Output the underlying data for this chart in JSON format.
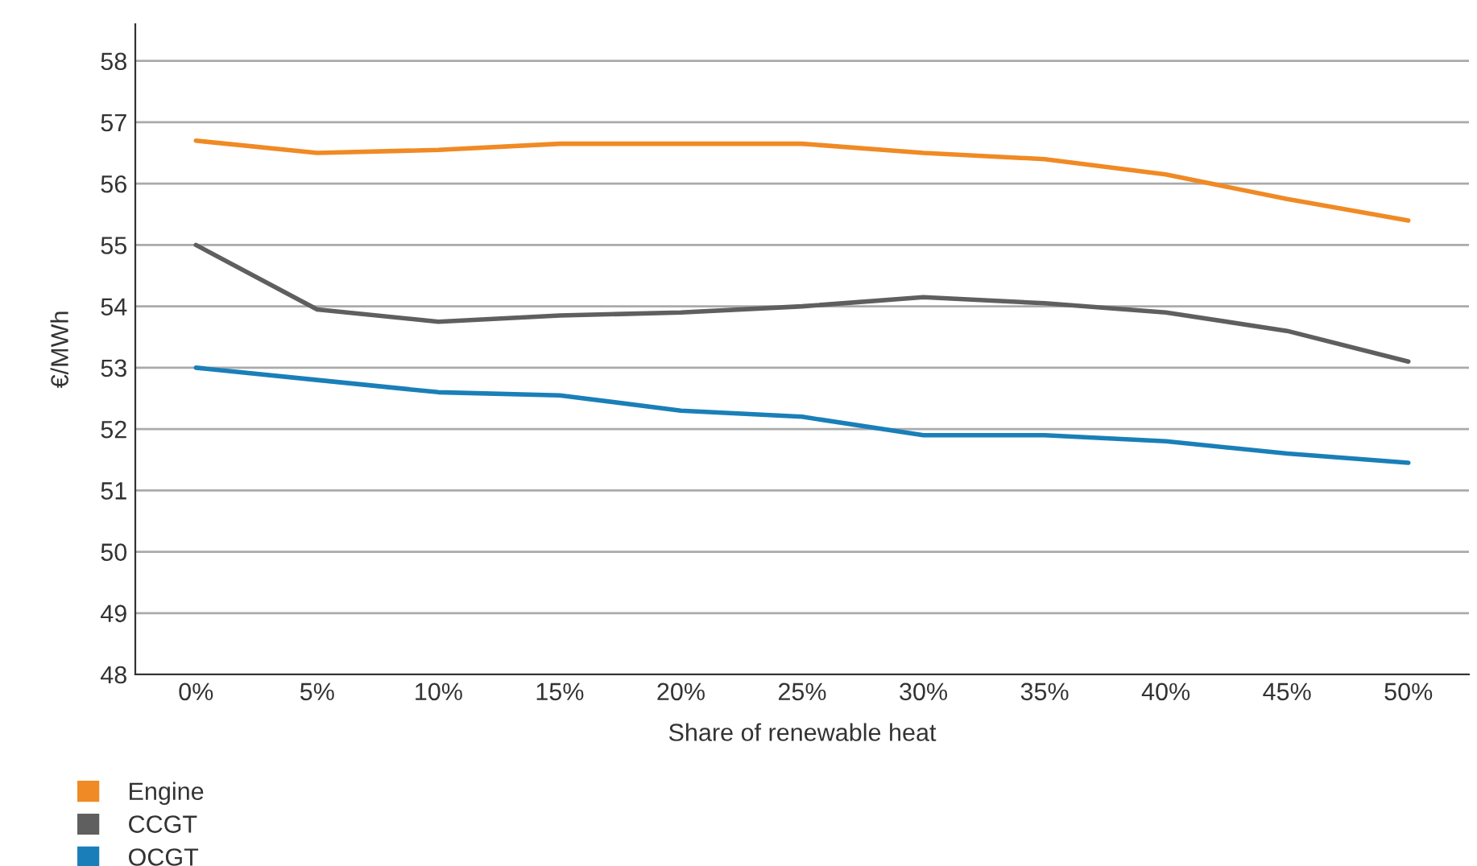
{
  "chart_data": {
    "type": "line",
    "xlabel": "Share of renewable heat",
    "ylabel": "€/MWh",
    "categories": [
      "0%",
      "5%",
      "10%",
      "15%",
      "20%",
      "25%",
      "30%",
      "35%",
      "40%",
      "45%",
      "50%"
    ],
    "series": [
      {
        "name": "Engine",
        "color": "#f08a24",
        "values": [
          56.7,
          56.5,
          56.55,
          56.65,
          56.65,
          56.65,
          56.5,
          56.4,
          56.15,
          55.75,
          55.4
        ]
      },
      {
        "name": "CCGT",
        "color": "#5f5f5f",
        "values": [
          55.0,
          53.95,
          53.75,
          53.85,
          53.9,
          54.0,
          54.15,
          54.05,
          53.9,
          53.6,
          53.1
        ]
      },
      {
        "name": "OCGT",
        "color": "#1a7fb8",
        "values": [
          53.0,
          52.8,
          52.6,
          52.55,
          52.3,
          52.2,
          51.9,
          51.9,
          51.8,
          51.6,
          51.45
        ]
      }
    ],
    "ylim": [
      48,
      58.6
    ],
    "yticks": [
      48,
      49,
      50,
      51,
      52,
      53,
      54,
      55,
      56,
      57,
      58
    ],
    "grid": "y",
    "legend": "bottom left",
    "marker": "none",
    "line_style": "solid"
  }
}
